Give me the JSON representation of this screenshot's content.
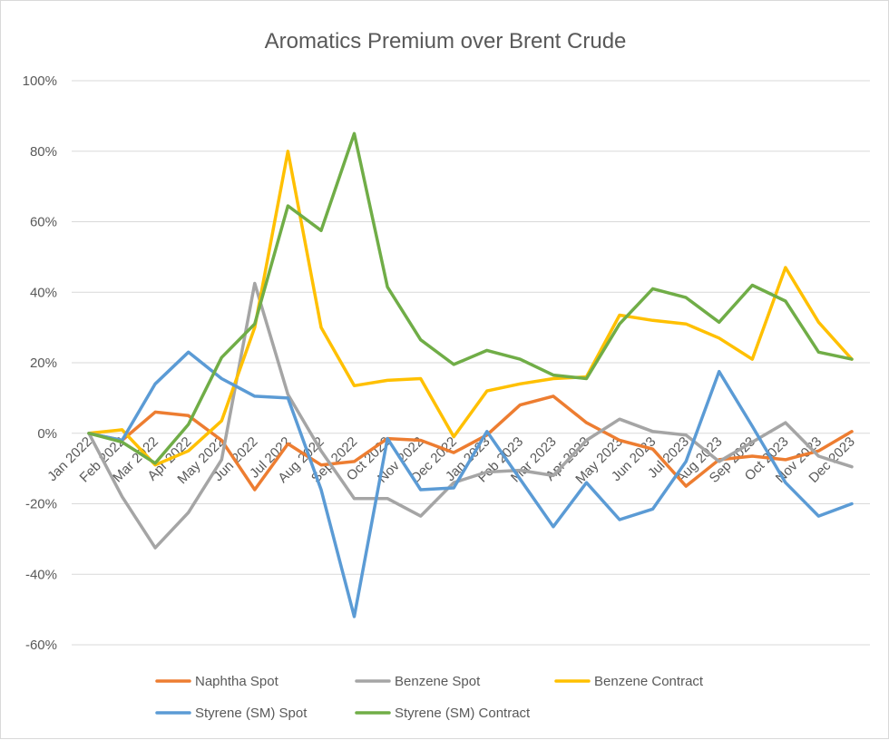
{
  "chart_data": {
    "type": "line",
    "title": "Aromatics Premium over Brent Crude",
    "xlabel": "",
    "ylabel": "",
    "ylim": [
      -60,
      100
    ],
    "ytick_step": 20,
    "ytick_labels": [
      "100%",
      "80%",
      "60%",
      "40%",
      "20%",
      "0%",
      "-20%",
      "-40%",
      "-60%"
    ],
    "grid": true,
    "legend_position": "bottom",
    "categories": [
      "Jan 2022",
      "Feb 2022",
      "Mar 2022",
      "Apr 2022",
      "May 2022",
      "Jun 2022",
      "Jul 2022",
      "Aug 2022",
      "Sep 2022",
      "Oct 2022",
      "Nov 2022",
      "Dec 2022",
      "Jan 2023",
      "Feb 2023",
      "Mar 2023",
      "Apr 2023",
      "May 2023",
      "Jun 2023",
      "Jul 2023",
      "Aug 2023",
      "Sep 2023",
      "Oct 2023",
      "Nov 2023",
      "Dec 2023"
    ],
    "series": [
      {
        "name": "Naphtha Spot",
        "color": "#ED7D31",
        "values": [
          0,
          -2,
          6,
          5,
          -2,
          -16,
          -3,
          -9,
          -8,
          -1.5,
          -2,
          -5.5,
          -0.5,
          8,
          10.5,
          3,
          -2,
          -4.5,
          -15,
          -7.5,
          -6.5,
          -7.5,
          -5,
          0.5
        ]
      },
      {
        "name": "Benzene Spot",
        "color": "#A5A5A5",
        "values": [
          0,
          -18,
          -32.5,
          -22.5,
          -7.5,
          42.5,
          11,
          -5,
          -18.5,
          -18.5,
          -23.5,
          -14,
          -11,
          -10.5,
          -12,
          -2,
          4,
          0.5,
          -0.5,
          -8,
          -2.5,
          3,
          -6.5,
          -9.5
        ]
      },
      {
        "name": "Benzene Contract",
        "color": "#FFC000",
        "values": [
          0,
          1,
          -9,
          -5,
          3.5,
          30,
          80,
          30,
          13.5,
          15,
          15.5,
          -1,
          12,
          14,
          15.5,
          16,
          33.5,
          32,
          31,
          27,
          21,
          47,
          31.5,
          21
        ]
      },
      {
        "name": "Styrene (SM) Spot",
        "color": "#5B9BD5",
        "values": [
          0,
          -2,
          14,
          23,
          15.5,
          10.5,
          10,
          -16,
          -52,
          -1.5,
          -16,
          -15.5,
          0.5,
          -13,
          -26.5,
          -14,
          -24.5,
          -21.5,
          -8,
          17.5,
          2,
          -14,
          -23.5,
          -20
        ]
      },
      {
        "name": "Styrene (SM) Contract",
        "color": "#70AD47",
        "values": [
          0,
          -2.5,
          -8.5,
          2.5,
          21.5,
          31,
          64.5,
          57.5,
          85,
          41.5,
          26.5,
          19.5,
          23.5,
          21,
          16.5,
          15.5,
          31,
          41,
          38.5,
          31.5,
          42,
          37.5,
          23,
          21
        ]
      }
    ]
  }
}
